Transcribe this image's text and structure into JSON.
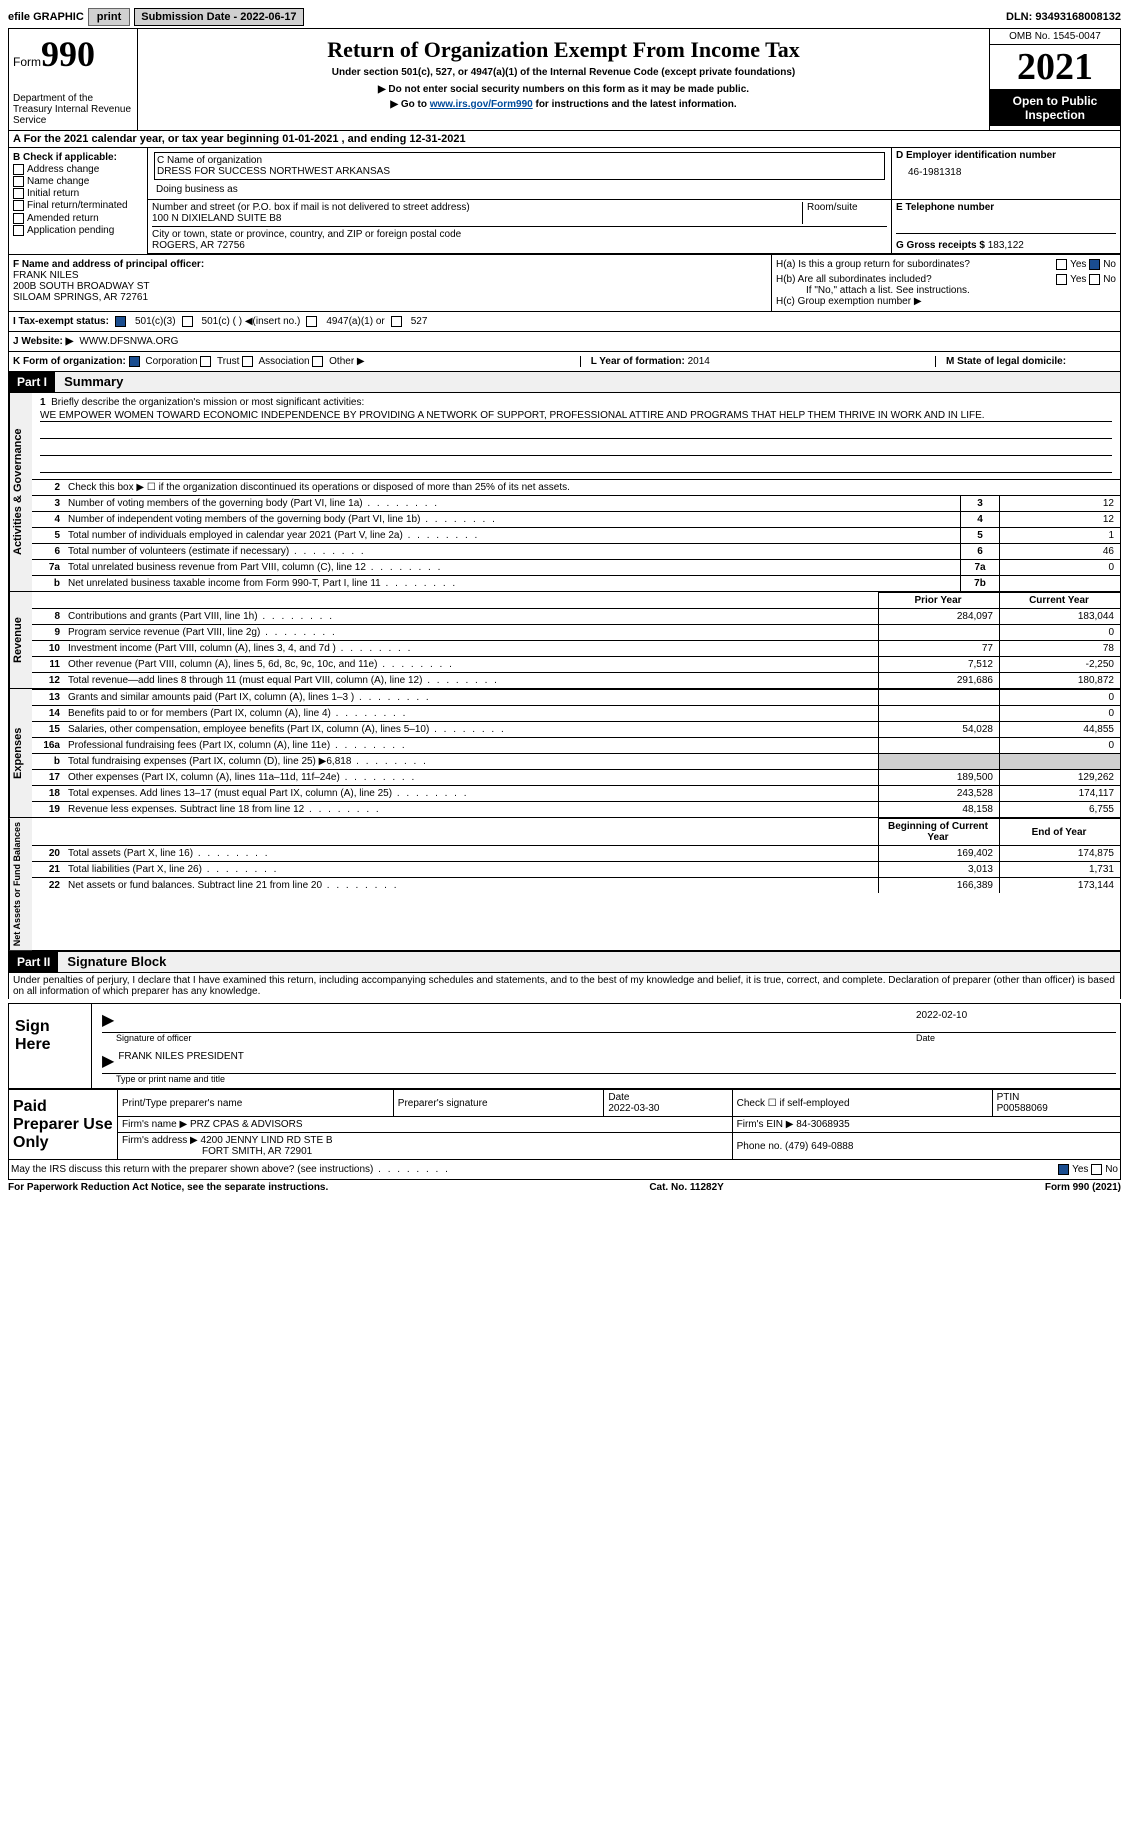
{
  "top_bar": {
    "efile": "efile GRAPHIC",
    "print_btn": "print",
    "sub_date_label": "Submission Date - ",
    "sub_date": "2022-06-17",
    "dln_label": "DLN: ",
    "dln": "93493168008132"
  },
  "header": {
    "form_label": "Form",
    "form_number": "990",
    "dept": "Department of the Treasury Internal Revenue Service",
    "title": "Return of Organization Exempt From Income Tax",
    "subtitle": "Under section 501(c), 527, or 4947(a)(1) of the Internal Revenue Code (except private foundations)",
    "warning": "▶ Do not enter social security numbers on this form as it may be made public.",
    "goto_pre": "▶ Go to ",
    "goto_link": "www.irs.gov/Form990",
    "goto_post": " for instructions and the latest information.",
    "omb": "OMB No. 1545-0047",
    "year": "2021",
    "inspection": "Open to Public Inspection"
  },
  "section_a": {
    "text_pre": "A For the 2021 calendar year, or tax year beginning ",
    "begin": "01-01-2021",
    "text_mid": "   , and ending ",
    "end": "12-31-2021"
  },
  "block_b": {
    "header": "B Check if applicable:",
    "items": [
      "Address change",
      "Name change",
      "Initial return",
      "Final return/terminated",
      "Amended return",
      "Application pending"
    ]
  },
  "block_c": {
    "name_label": "C Name of organization",
    "org_name": "DRESS FOR SUCCESS NORTHWEST ARKANSAS",
    "dba_label": "Doing business as",
    "street_label": "Number and street (or P.O. box if mail is not delivered to street address)",
    "street": "100 N DIXIELAND SUITE B8",
    "room_label": "Room/suite",
    "city_label": "City or town, state or province, country, and ZIP or foreign postal code",
    "city": "ROGERS, AR  72756"
  },
  "block_d": {
    "ein_label": "D Employer identification number",
    "ein": "46-1981318",
    "phone_label": "E Telephone number",
    "gross_label": "G Gross receipts $ ",
    "gross": "183,122"
  },
  "block_f": {
    "label": "F  Name and address of principal officer:",
    "name": "FRANK NILES",
    "addr1": "200B SOUTH BROADWAY ST",
    "addr2": "SILOAM SPRINGS, AR  72761"
  },
  "block_h": {
    "ha": "H(a)  Is this a group return for subordinates?",
    "hb": "H(b)  Are all subordinates included?",
    "hb_note": "If \"No,\" attach a list. See instructions.",
    "hc": "H(c)  Group exemption number ▶",
    "yes": "Yes",
    "no": "No"
  },
  "row_i": {
    "label": "I   Tax-exempt status:",
    "opts": [
      "501(c)(3)",
      "501(c) (  ) ◀(insert no.)",
      "4947(a)(1) or",
      "527"
    ]
  },
  "row_j": {
    "label": "J   Website: ▶",
    "url": " WWW.DFSNWA.ORG"
  },
  "row_k": {
    "label": "K Form of organization:",
    "opts": [
      "Corporation",
      "Trust",
      "Association",
      "Other ▶"
    ],
    "l_label": "L Year of formation: ",
    "l_val": "2014",
    "m_label": "M State of legal domicile: "
  },
  "part1": {
    "part": "Part I",
    "title": "Summary",
    "q1": "Briefly describe the organization's mission or most significant activities:",
    "mission": "WE EMPOWER WOMEN TOWARD ECONOMIC INDEPENDENCE BY PROVIDING A NETWORK OF SUPPORT, PROFESSIONAL ATTIRE AND PROGRAMS THAT HELP THEM THRIVE IN WORK AND IN LIFE.",
    "q2": "Check this box ▶ ☐ if the organization discontinued its operations or disposed of more than 25% of its net assets.",
    "rows_gov": [
      {
        "n": "3",
        "t": "Number of voting members of the governing body (Part VI, line 1a)",
        "box": "3",
        "v": "12"
      },
      {
        "n": "4",
        "t": "Number of independent voting members of the governing body (Part VI, line 1b)",
        "box": "4",
        "v": "12"
      },
      {
        "n": "5",
        "t": "Total number of individuals employed in calendar year 2021 (Part V, line 2a)",
        "box": "5",
        "v": "1"
      },
      {
        "n": "6",
        "t": "Total number of volunteers (estimate if necessary)",
        "box": "6",
        "v": "46"
      },
      {
        "n": "7a",
        "t": "Total unrelated business revenue from Part VIII, column (C), line 12",
        "box": "7a",
        "v": "0"
      },
      {
        "n": "b",
        "t": "Net unrelated business taxable income from Form 990-T, Part I, line 11",
        "box": "7b",
        "v": ""
      }
    ],
    "col_headers": {
      "prior": "Prior Year",
      "current": "Current Year",
      "begin": "Beginning of Current Year",
      "end": "End of Year"
    },
    "rows_rev": [
      {
        "n": "8",
        "t": "Contributions and grants (Part VIII, line 1h)",
        "p": "284,097",
        "c": "183,044"
      },
      {
        "n": "9",
        "t": "Program service revenue (Part VIII, line 2g)",
        "p": "",
        "c": "0"
      },
      {
        "n": "10",
        "t": "Investment income (Part VIII, column (A), lines 3, 4, and 7d )",
        "p": "77",
        "c": "78"
      },
      {
        "n": "11",
        "t": "Other revenue (Part VIII, column (A), lines 5, 6d, 8c, 9c, 10c, and 11e)",
        "p": "7,512",
        "c": "-2,250"
      },
      {
        "n": "12",
        "t": "Total revenue—add lines 8 through 11 (must equal Part VIII, column (A), line 12)",
        "p": "291,686",
        "c": "180,872"
      }
    ],
    "rows_exp": [
      {
        "n": "13",
        "t": "Grants and similar amounts paid (Part IX, column (A), lines 1–3 )",
        "p": "",
        "c": "0"
      },
      {
        "n": "14",
        "t": "Benefits paid to or for members (Part IX, column (A), line 4)",
        "p": "",
        "c": "0"
      },
      {
        "n": "15",
        "t": "Salaries, other compensation, employee benefits (Part IX, column (A), lines 5–10)",
        "p": "54,028",
        "c": "44,855"
      },
      {
        "n": "16a",
        "t": "Professional fundraising fees (Part IX, column (A), line 11e)",
        "p": "",
        "c": "0"
      },
      {
        "n": "b",
        "t": "Total fundraising expenses (Part IX, column (D), line 25) ▶6,818",
        "p": "gray",
        "c": "gray"
      },
      {
        "n": "17",
        "t": "Other expenses (Part IX, column (A), lines 11a–11d, 11f–24e)",
        "p": "189,500",
        "c": "129,262"
      },
      {
        "n": "18",
        "t": "Total expenses. Add lines 13–17 (must equal Part IX, column (A), line 25)",
        "p": "243,528",
        "c": "174,117"
      },
      {
        "n": "19",
        "t": "Revenue less expenses. Subtract line 18 from line 12",
        "p": "48,158",
        "c": "6,755"
      }
    ],
    "rows_net": [
      {
        "n": "20",
        "t": "Total assets (Part X, line 16)",
        "p": "169,402",
        "c": "174,875"
      },
      {
        "n": "21",
        "t": "Total liabilities (Part X, line 26)",
        "p": "3,013",
        "c": "1,731"
      },
      {
        "n": "22",
        "t": "Net assets or fund balances. Subtract line 21 from line 20",
        "p": "166,389",
        "c": "173,144"
      }
    ],
    "vert_labels": {
      "gov": "Activities & Governance",
      "rev": "Revenue",
      "exp": "Expenses",
      "net": "Net Assets or Fund Balances"
    }
  },
  "part2": {
    "part": "Part II",
    "title": "Signature Block",
    "declaration": "Under penalties of perjury, I declare that I have examined this return, including accompanying schedules and statements, and to the best of my knowledge and belief, it is true, correct, and complete. Declaration of preparer (other than officer) is based on all information of which preparer has any knowledge.",
    "sign_here": "Sign Here",
    "sig_officer": "Signature of officer",
    "date_label": "Date",
    "sig_date": "2022-02-10",
    "typed_name": "FRANK NILES  PRESIDENT",
    "typed_label": "Type or print name and title",
    "paid": "Paid Preparer Use Only",
    "prep_name_label": "Print/Type preparer's name",
    "prep_sig_label": "Preparer's signature",
    "prep_date_label": "Date",
    "prep_date": "2022-03-30",
    "check_self": "Check ☐ if self-employed",
    "ptin_label": "PTIN",
    "ptin": "P00588069",
    "firm_name_label": "Firm's name     ▶ ",
    "firm_name": "PRZ CPAS & ADVISORS",
    "firm_ein_label": "Firm's EIN ▶ ",
    "firm_ein": "84-3068935",
    "firm_addr_label": "Firm's address ▶ ",
    "firm_addr1": "4200 JENNY LIND RD STE B",
    "firm_addr2": "FORT SMITH, AR  72901",
    "phone_label": "Phone no. ",
    "phone": "(479) 649-0888",
    "discuss": "May the IRS discuss this return with the preparer shown above? (see instructions)",
    "paperwork": "For Paperwork Reduction Act Notice, see the separate instructions.",
    "cat": "Cat. No. 11282Y",
    "form_foot": "Form 990 (2021)"
  }
}
